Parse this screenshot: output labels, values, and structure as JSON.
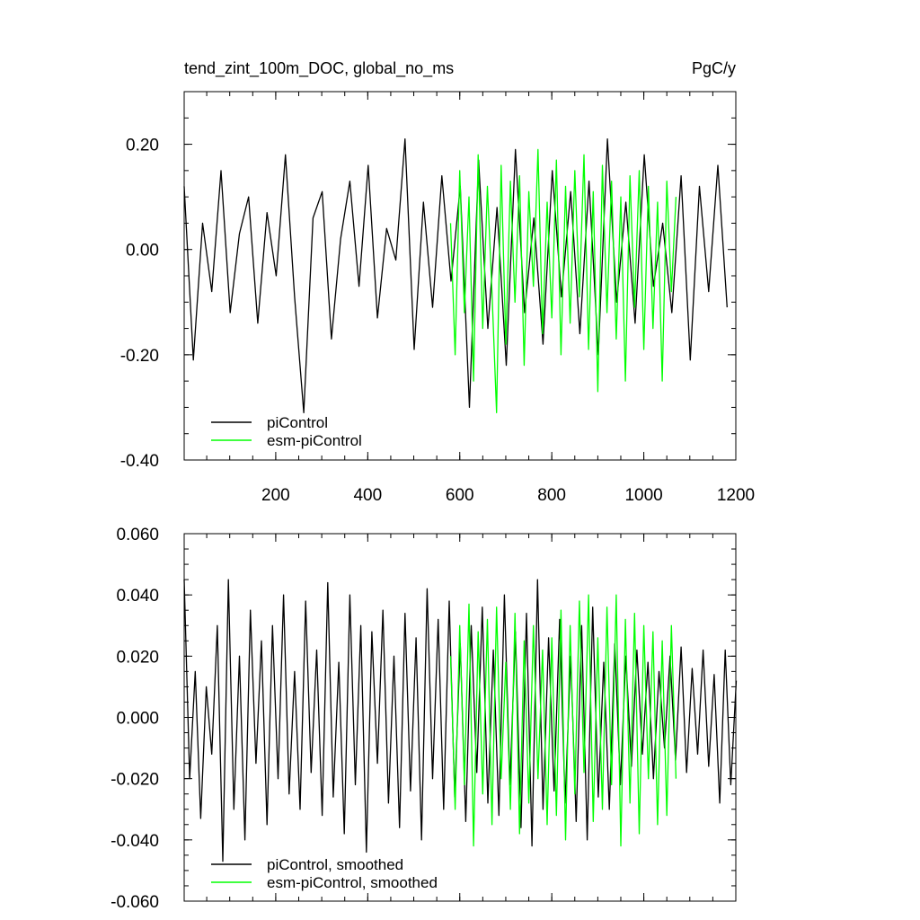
{
  "chart_data": [
    {
      "type": "line",
      "title": "tend_zint_100m_DOC, global_no_ms",
      "units": "PgC/y",
      "xlim": [
        1,
        1200
      ],
      "ylim": [
        -0.4,
        0.3
      ],
      "xticks": [
        200,
        400,
        600,
        800,
        1000,
        1200
      ],
      "xtick_labels": [
        "200",
        "400",
        "600",
        "800",
        "1000",
        "1200"
      ],
      "yticks": [
        -0.4,
        -0.2,
        0.0,
        0.2
      ],
      "ytick_labels": [
        "-0.40",
        "-0.20",
        "0.00",
        "0.20"
      ],
      "legend_position": "bottom-left",
      "series": [
        {
          "name": "piControl",
          "color": "#000000",
          "x_start": 1,
          "x_step": 20,
          "values": [
            0.12,
            -0.21,
            0.05,
            -0.08,
            0.15,
            -0.12,
            0.03,
            0.1,
            -0.14,
            0.07,
            -0.05,
            0.18,
            -0.09,
            -0.31,
            0.06,
            0.11,
            -0.17,
            0.02,
            0.13,
            -0.07,
            0.16,
            -0.13,
            0.04,
            -0.02,
            0.21,
            -0.19,
            0.09,
            -0.11,
            0.14,
            -0.06,
            0.12,
            -0.3,
            0.17,
            -0.15,
            0.08,
            -0.22,
            0.19,
            -0.12,
            0.06,
            -0.18,
            0.15,
            -0.09,
            0.11,
            -0.16,
            0.13,
            -0.2,
            0.21,
            -0.1,
            0.09,
            -0.14,
            0.18,
            -0.07,
            0.05,
            -0.12,
            0.14,
            -0.21,
            0.12,
            -0.08,
            0.16,
            -0.11
          ]
        },
        {
          "name": "esm-piControl",
          "color": "#00ff00",
          "x_start": 580,
          "x_step": 10,
          "values": [
            0.05,
            -0.2,
            0.15,
            -0.12,
            0.1,
            -0.25,
            0.18,
            -0.15,
            0.12,
            -0.08,
            -0.31,
            0.16,
            -0.18,
            0.13,
            -0.1,
            0.14,
            -0.22,
            0.11,
            -0.07,
            0.19,
            -0.16,
            0.09,
            -0.13,
            0.17,
            -0.2,
            0.12,
            -0.14,
            0.15,
            -0.09,
            0.18,
            -0.19,
            0.11,
            -0.27,
            0.16,
            -0.12,
            0.13,
            -0.17,
            0.1,
            -0.25,
            0.14,
            -0.11,
            0.15,
            -0.19,
            0.12,
            -0.15,
            0.09,
            -0.25,
            0.13,
            -0.08,
            0.1
          ]
        }
      ]
    },
    {
      "type": "line",
      "title": "",
      "units": "",
      "xlim": [
        1,
        1200
      ],
      "ylim": [
        -0.06,
        0.06
      ],
      "xticks": [
        200,
        400,
        600,
        800,
        1000,
        1200
      ],
      "xtick_labels": [],
      "yticks": [
        -0.06,
        -0.04,
        -0.02,
        0.0,
        0.02,
        0.04,
        0.06
      ],
      "ytick_labels": [
        "-0.060",
        "-0.040",
        "-0.020",
        "0.000",
        "0.020",
        "0.040",
        "0.060"
      ],
      "legend_position": "bottom-left",
      "series": [
        {
          "name": "piControl, smoothed",
          "color": "#000000",
          "x_start": 1,
          "x_step": 12,
          "values": [
            0.045,
            -0.02,
            0.015,
            -0.033,
            0.01,
            -0.012,
            0.03,
            -0.047,
            0.045,
            -0.03,
            0.02,
            -0.04,
            0.035,
            -0.015,
            0.025,
            -0.035,
            0.03,
            -0.02,
            0.04,
            -0.025,
            0.015,
            -0.03,
            0.038,
            -0.018,
            0.022,
            -0.032,
            0.044,
            -0.026,
            0.018,
            -0.038,
            0.04,
            -0.022,
            0.03,
            -0.044,
            0.028,
            -0.015,
            0.035,
            -0.028,
            0.02,
            -0.036,
            0.034,
            -0.024,
            0.026,
            -0.04,
            0.042,
            -0.02,
            0.032,
            -0.03,
            0.038,
            -0.026,
            0.024,
            -0.034,
            0.03,
            -0.018,
            0.036,
            -0.028,
            0.022,
            -0.032,
            0.04,
            -0.022,
            0.028,
            -0.036,
            0.034,
            -0.042,
            0.045,
            -0.03,
            0.026,
            -0.024,
            0.032,
            -0.028,
            0.02,
            -0.034,
            0.03,
            -0.04,
            0.036,
            -0.026,
            0.018,
            -0.03,
            0.024,
            -0.022,
            0.02,
            -0.016,
            0.022,
            -0.012,
            0.018,
            -0.02,
            0.015,
            -0.01,
            0.02,
            -0.014,
            0.023,
            -0.018,
            0.016,
            -0.012,
            0.022,
            -0.016,
            0.014,
            -0.028,
            0.022,
            -0.022,
            0.012
          ]
        },
        {
          "name": "esm-piControl, smoothed",
          "color": "#00ff00",
          "x_start": 580,
          "x_step": 10,
          "values": [
            0.02,
            -0.03,
            0.03,
            -0.022,
            0.037,
            -0.042,
            0.028,
            -0.025,
            0.032,
            -0.035,
            0.036,
            -0.02,
            0.018,
            -0.03,
            0.034,
            -0.038,
            0.025,
            -0.028,
            0.03,
            -0.02,
            0.022,
            -0.035,
            0.026,
            -0.032,
            0.035,
            -0.04,
            0.03,
            -0.025,
            0.038,
            -0.018,
            0.04,
            -0.034,
            0.026,
            -0.03,
            0.036,
            -0.022,
            0.04,
            -0.042,
            0.032,
            -0.028,
            0.034,
            -0.038,
            0.03,
            -0.02,
            0.028,
            -0.035,
            0.025,
            -0.032,
            0.03,
            -0.02
          ]
        }
      ]
    }
  ]
}
